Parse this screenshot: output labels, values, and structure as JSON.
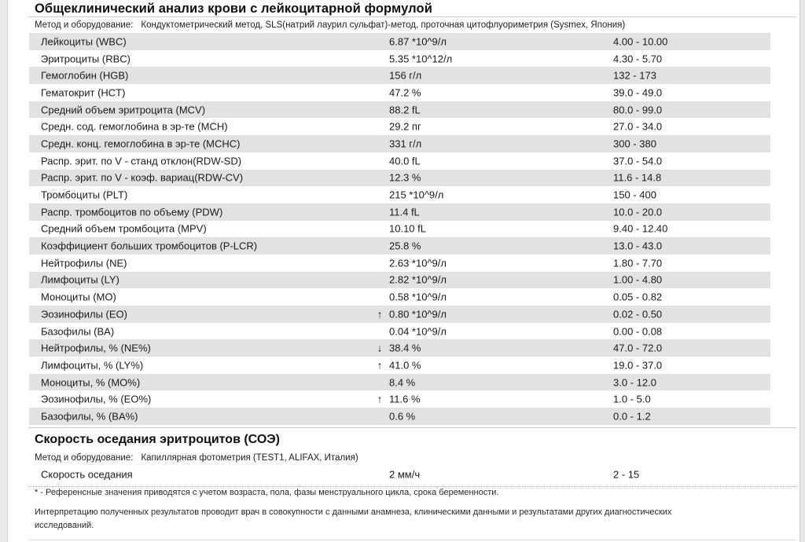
{
  "report": {
    "title": "Общеклинический анализ крови с лейкоцитарной формулой",
    "method_label": "Метод и оборудование:",
    "method_value": "Кондуктометрический метод, SLS(натрий лаурил сульфат)-метод, проточная цитофлуориметрия (Sysmex, Япония)"
  },
  "cbc_table": {
    "rows": [
      {
        "name": "Лейкоциты (WBC)",
        "flag": "",
        "value": "6.87 *10^9/л",
        "ref": "4.00 - 10.00"
      },
      {
        "name": "Эритроциты (RBC)",
        "flag": "",
        "value": "5.35 *10^12/л",
        "ref": "4.30 - 5.70"
      },
      {
        "name": "Гемоглобин (HGB)",
        "flag": "",
        "value": "156 г/л",
        "ref": "132 - 173"
      },
      {
        "name": "Гематокрит (HCT)",
        "flag": "",
        "value": "47.2 %",
        "ref": "39.0 - 49.0"
      },
      {
        "name": "Средний объем эритроцита (MCV)",
        "flag": "",
        "value": "88.2 fL",
        "ref": "80.0 - 99.0"
      },
      {
        "name": "Средн. сод. гемоглобина в эр-те (MCH)",
        "flag": "",
        "value": "29.2 пг",
        "ref": "27.0 - 34.0"
      },
      {
        "name": "Средн. конц. гемоглобина в эр-те (MCHC)",
        "flag": "",
        "value": "331 г/л",
        "ref": "300 - 380"
      },
      {
        "name": "Распр. эрит. по V - станд отклон(RDW-SD)",
        "flag": "",
        "value": "40.0 fL",
        "ref": "37.0 - 54.0"
      },
      {
        "name": "Распр. эрит. по V - коэф. вариац(RDW-CV)",
        "flag": "",
        "value": "12.3 %",
        "ref": "11.6 - 14.8"
      },
      {
        "name": "Тромбоциты (PLT)",
        "flag": "",
        "value": "215 *10^9/л",
        "ref": "150 - 400"
      },
      {
        "name": "Распр. тромбоцитов по объему (PDW)",
        "flag": "",
        "value": "11.4 fL",
        "ref": "10.0 - 20.0"
      },
      {
        "name": "Средний объем тромбоцита (MPV)",
        "flag": "",
        "value": "10.10 fL",
        "ref": "9.40 - 12.40"
      },
      {
        "name": "Коэффициент больших тромбоцитов (P-LCR)",
        "flag": "",
        "value": "25.8 %",
        "ref": "13.0 - 43.0"
      },
      {
        "name": "Нейтрофилы (NE)",
        "flag": "",
        "value": "2.63 *10^9/л",
        "ref": "1.80 - 7.70"
      },
      {
        "name": "Лимфоциты (LY)",
        "flag": "",
        "value": "2.82 *10^9/л",
        "ref": "1.00 - 4.80"
      },
      {
        "name": "Моноциты (MO)",
        "flag": "",
        "value": "0.58 *10^9/л",
        "ref": "0.05 - 0.82"
      },
      {
        "name": "Эозинофилы (EO)",
        "flag": "↑",
        "value": "0.80 *10^9/л",
        "ref": "0.02 - 0.50"
      },
      {
        "name": "Базофилы (BA)",
        "flag": "",
        "value": "0.04 *10^9/л",
        "ref": "0.00 - 0.08"
      },
      {
        "name": "Нейтрофилы, % (NE%)",
        "flag": "↓",
        "value": "38.4 %",
        "ref": "47.0 - 72.0"
      },
      {
        "name": "Лимфоциты, % (LY%)",
        "flag": "↑",
        "value": "41.0 %",
        "ref": "19.0 - 37.0"
      },
      {
        "name": "Моноциты, % (MO%)",
        "flag": "",
        "value": "8.4 %",
        "ref": "3.0 - 12.0"
      },
      {
        "name": "Эозинофилы, % (EO%)",
        "flag": "↑",
        "value": "11.6 %",
        "ref": "1.0 - 5.0"
      },
      {
        "name": "Базофилы, % (BA%)",
        "flag": "",
        "value": "0.6 %",
        "ref": "0.0 - 1.2"
      }
    ]
  },
  "esr_section": {
    "title": "Скорость оседания эритроцитов (СОЭ)",
    "method_label": "Метод и оборудование:",
    "method_value": "Капиллярная фотометрия (TEST1, ALIFAX, Италия)",
    "row": {
      "name": "Скорость оседания",
      "flag": "",
      "value": "2 мм/ч",
      "ref": "2 - 15"
    }
  },
  "footnotes": {
    "reference_note": "* - Референсные значения приводятся с учетом возраста, пола, фазы менструального цикла, срока беременности.",
    "interpretation_note": "Интерпретацию полученных результатов проводит врач в совокупности с данными анамнеза, клиническими данными и результатами других диагностических исследований."
  },
  "colors": {
    "stripe": "#e2e2e2",
    "text": "#1b1b1b",
    "divider": "#cccccc",
    "page_edge": "#ebebee"
  }
}
